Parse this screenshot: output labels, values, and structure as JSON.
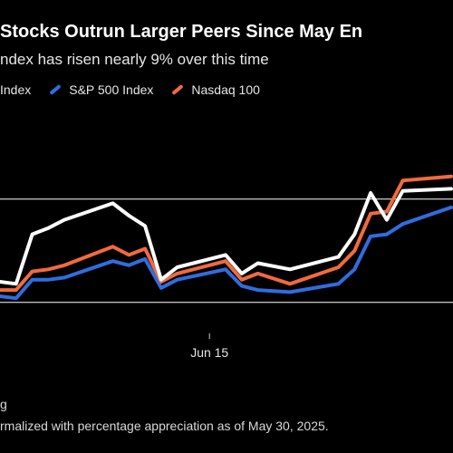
{
  "header": {
    "title": "Stocks Outrun Larger Peers Since May En",
    "subtitle": "ndex has risen nearly 9% over this time"
  },
  "footer": {
    "source": "g",
    "note": "rmalized with percentage appreciation as of May 30, 2025."
  },
  "colors": {
    "background": "#000000",
    "index": "#ffffff",
    "sp500": "#2f6de0",
    "nasdaq": "#f26a3d",
    "grid": "#ffffff"
  },
  "chart_data": {
    "type": "line",
    "x": [
      "2025-06-02",
      "2025-06-03",
      "2025-06-04",
      "2025-06-05",
      "2025-06-06",
      "2025-06-09",
      "2025-06-10",
      "2025-06-11",
      "2025-06-12",
      "2025-06-13",
      "2025-06-16",
      "2025-06-17",
      "2025-06-18",
      "2025-06-20",
      "2025-06-23",
      "2025-06-24",
      "2025-06-25",
      "2025-06-26",
      "2025-06-27",
      "2025-06-30"
    ],
    "xticks": [
      {
        "date": "2025-06-15",
        "label": "Jun 15"
      }
    ],
    "ylim": [
      99.5,
      109.5
    ],
    "grid_y": [
      101,
      106
    ],
    "series": [
      {
        "name": "Index",
        "color": "#ffffff",
        "values": [
          102.0,
          101.9,
          104.3,
          104.6,
          105.0,
          105.8,
          105.2,
          104.7,
          102.1,
          102.7,
          103.3,
          102.4,
          102.9,
          102.6,
          103.2,
          104.3,
          106.3,
          105.0,
          106.4,
          106.5
        ]
      },
      {
        "name": "S&P 500 Index",
        "color": "#2f6de0",
        "values": [
          101.3,
          101.2,
          102.1,
          102.1,
          102.2,
          103.0,
          102.8,
          103.1,
          101.7,
          102.1,
          102.6,
          101.8,
          101.6,
          101.5,
          101.9,
          102.6,
          104.2,
          104.3,
          104.8,
          105.6
        ]
      },
      {
        "name": "Nasdaq 100",
        "color": "#f26a3d",
        "values": [
          101.6,
          101.6,
          102.5,
          102.6,
          102.8,
          103.7,
          103.3,
          103.6,
          102.0,
          102.4,
          103.0,
          102.1,
          102.4,
          101.9,
          102.7,
          103.5,
          105.3,
          105.4,
          106.9,
          107.1
        ]
      }
    ]
  }
}
